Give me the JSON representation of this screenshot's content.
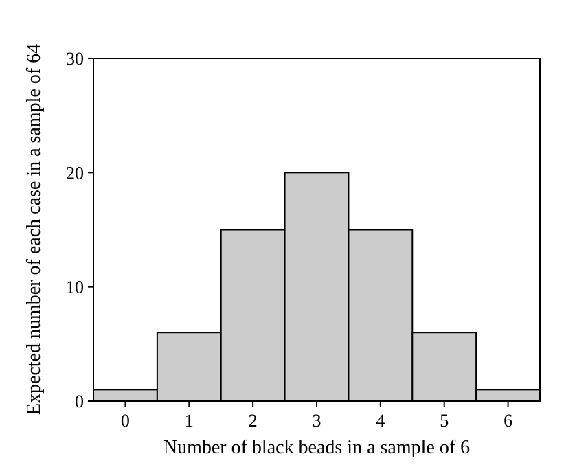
{
  "chart_data": {
    "type": "bar",
    "title": "",
    "xlabel": "Number of black beads in a sample of 6",
    "ylabel": "Expected number of each case in a sample of 64",
    "categories": [
      "0",
      "1",
      "2",
      "3",
      "4",
      "5",
      "6"
    ],
    "values": [
      1,
      6,
      15,
      20,
      15,
      6,
      1
    ],
    "ylim": [
      0,
      30
    ],
    "yticks": [
      "0",
      "10",
      "20",
      "30"
    ],
    "grid": false,
    "bar_color": "#cccccc",
    "edge_color": "#000000"
  }
}
